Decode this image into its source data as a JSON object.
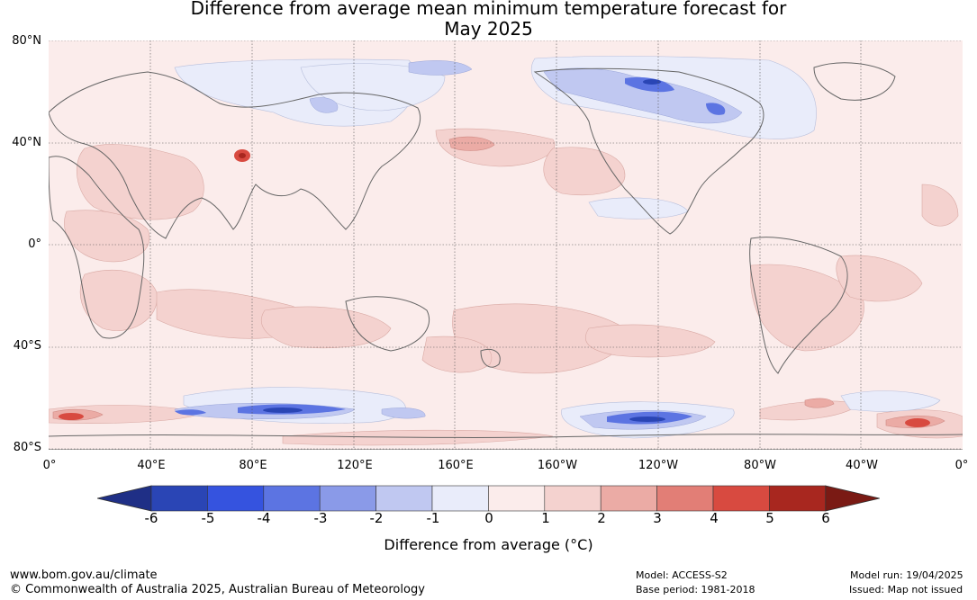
{
  "title": {
    "line1": "Difference from average mean minimum temperature forecast for",
    "line2": "May 2025"
  },
  "lat_labels": [
    "80°N",
    "40°N",
    "0°",
    "40°S",
    "80°S"
  ],
  "lon_labels": [
    "0°",
    "40°E",
    "80°E",
    "120°E",
    "160°E",
    "160°W",
    "120°W",
    "80°W",
    "40°W",
    "0°"
  ],
  "colorbar": {
    "ticks": [
      "-6",
      "-5",
      "-4",
      "-3",
      "-2",
      "-1",
      "0",
      "1",
      "2",
      "3",
      "4",
      "5",
      "6"
    ],
    "colors": [
      "#1f2f86",
      "#2a45b5",
      "#3553df",
      "#5c74e2",
      "#8a9ae8",
      "#c0c8f1",
      "#e9ecfa",
      "#fbeceb",
      "#f4d2cf",
      "#ebaba5",
      "#e27e76",
      "#d84a40",
      "#a8271f",
      "#7a1a14"
    ],
    "label": "Difference from average (°C)"
  },
  "footer": {
    "website": "www.bom.gov.au/climate",
    "copyright": "© Commonwealth of Australia 2025, Australian Bureau of Meteorology",
    "model": "Model: ACCESS-S2",
    "base_period": "Base period: 1981-2018",
    "model_run": "Model run: 19/04/2025",
    "issued": "Issued: Map not issued"
  }
}
